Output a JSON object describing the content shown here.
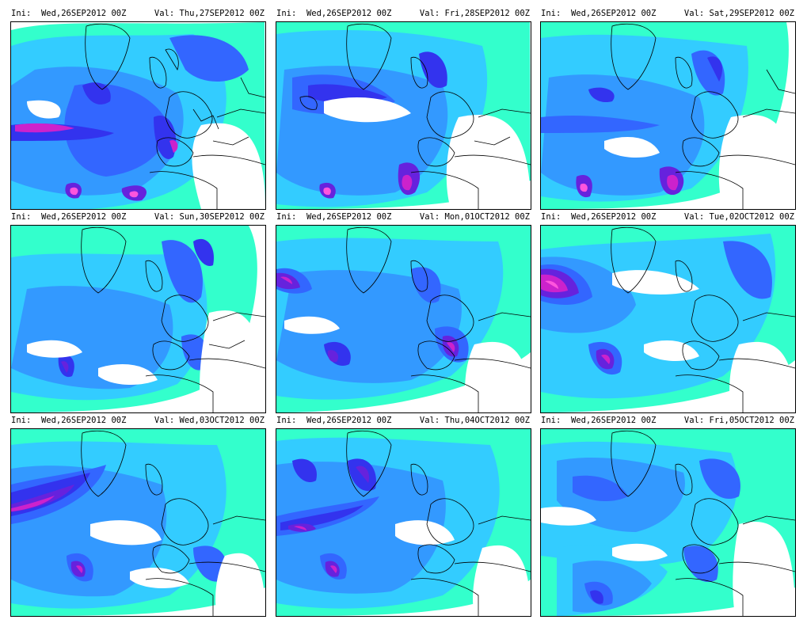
{
  "panels": [
    {
      "ini_label": "Ini:",
      "ini_value": "Wed,26SEP2012 00Z",
      "val_label": "Val:",
      "val_value": "Thu,27SEP2012 00Z"
    },
    {
      "ini_label": "Ini:",
      "ini_value": "Wed,26SEP2012 00Z",
      "val_label": "Val:",
      "val_value": "Fri,28SEP2012 00Z"
    },
    {
      "ini_label": "Ini:",
      "ini_value": "Wed,26SEP2012 00Z",
      "val_label": "Val:",
      "val_value": "Sat,29SEP2012 00Z"
    },
    {
      "ini_label": "Ini:",
      "ini_value": "Wed,26SEP2012 00Z",
      "val_label": "Val:",
      "val_value": "Sun,30SEP2012 00Z"
    },
    {
      "ini_label": "Ini:",
      "ini_value": "Wed,26SEP2012 00Z",
      "val_label": "Val:",
      "val_value": "Mon,01OCT2012 00Z"
    },
    {
      "ini_label": "Ini:",
      "ini_value": "Wed,26SEP2012 00Z",
      "val_label": "Val:",
      "val_value": "Tue,02OCT2012 00Z"
    },
    {
      "ini_label": "Ini:",
      "ini_value": "Wed,26SEP2012 00Z",
      "val_label": "Val:",
      "val_value": "Wed,03OCT2012 00Z"
    },
    {
      "ini_label": "Ini:",
      "ini_value": "Wed,26SEP2012 00Z",
      "val_label": "Val:",
      "val_value": "Thu,04OCT2012 00Z"
    },
    {
      "ini_label": "Ini:",
      "ini_value": "Wed,26SEP2012 00Z",
      "val_label": "Val:",
      "val_value": "Fri,05OCT2012 00Z"
    }
  ],
  "colors": {
    "background": "#ffffff",
    "level_1": "#33ffcc",
    "level_2": "#33ccff",
    "level_3": "#3399ff",
    "level_4": "#3366ff",
    "level_5": "#3333ee",
    "level_6": "#6622dd",
    "level_7": "#cc22cc",
    "level_8": "#ff55dd",
    "coastline": "#000000",
    "border": "#000000"
  }
}
